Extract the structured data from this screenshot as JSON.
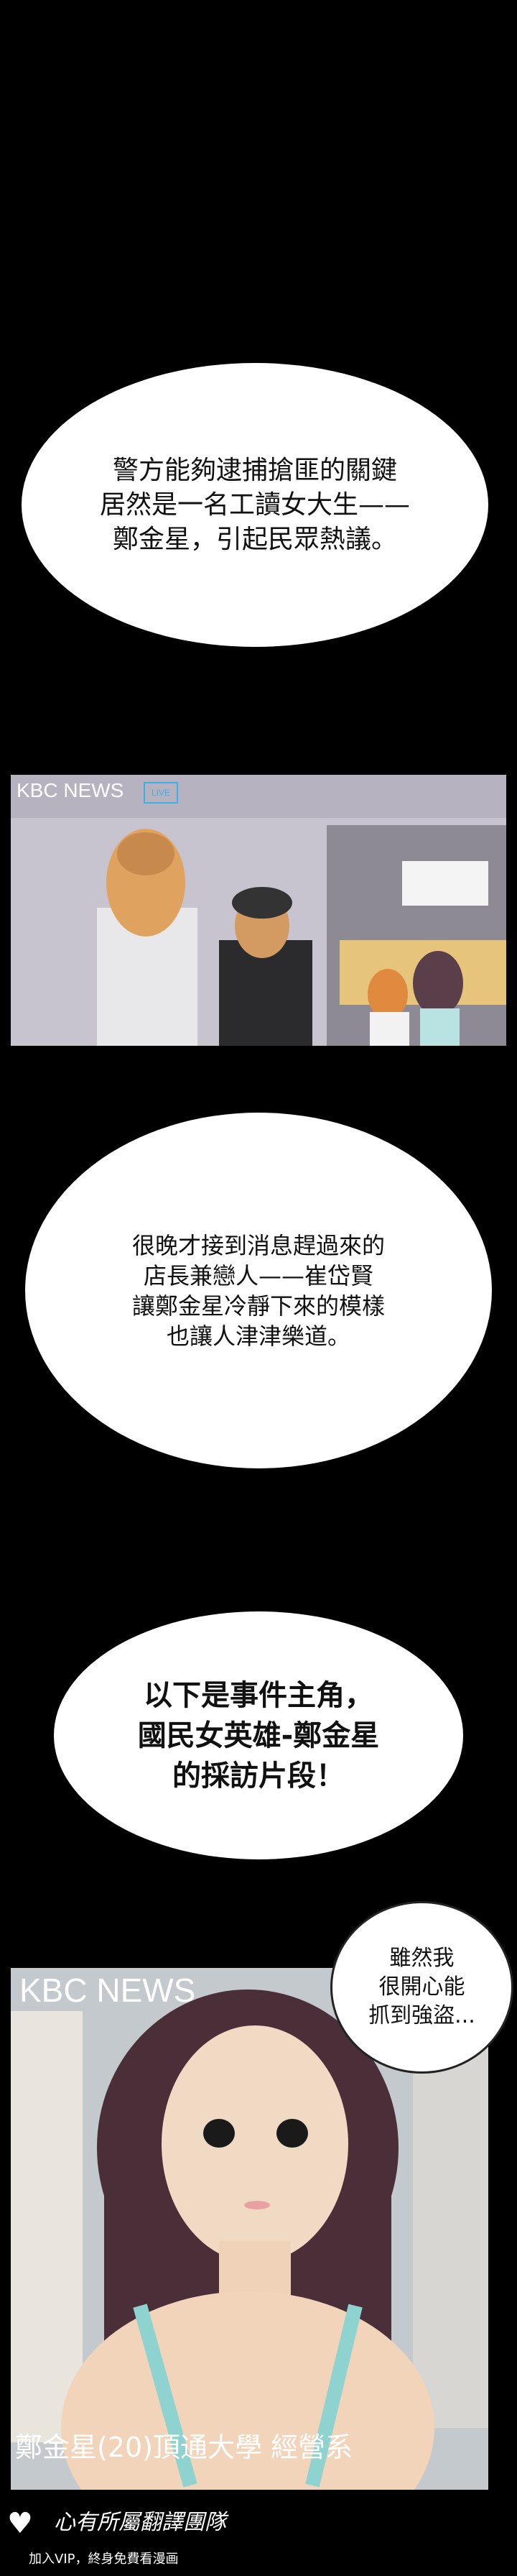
{
  "bubble1": {
    "lines": "警方能夠逮捕搶匪的關鍵\n居然是一名工讀女大生——\n鄭金星，引起民眾熱議。"
  },
  "panel1": {
    "channel": "KBC NEWS",
    "live_badge": "LIVE"
  },
  "bubble2": {
    "lines": "很晚才接到消息趕過來的\n店長兼戀人——崔岱賢\n讓鄭金星冷靜下來的模樣\n也讓人津津樂道。"
  },
  "bubble3": {
    "lines": "以下是事件主角，\n國民女英雄-鄭金星\n的採訪片段！"
  },
  "panel2": {
    "channel": "KBC NEWS",
    "speech": "雖然我\n很開心能\n抓到強盜...",
    "caption": "鄭金星(20)頂通大學 經營系"
  },
  "footer": {
    "group": "心有所屬翻譯團隊",
    "note": "加入VIP，終身免費看漫画"
  },
  "colors": {
    "background": "#000000",
    "bubble": "#ffffff"
  }
}
